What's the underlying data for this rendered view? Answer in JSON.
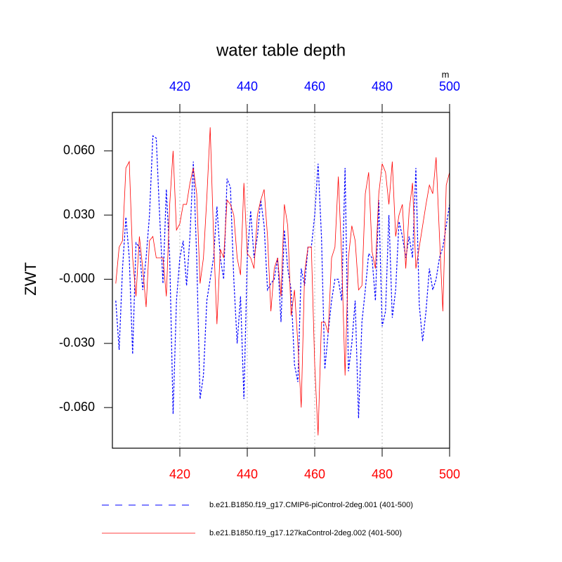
{
  "chart_data": {
    "type": "line",
    "title": "water table depth",
    "ylabel": "ZWT",
    "x2label": "m",
    "xlim": [
      400,
      500
    ],
    "xticks": [
      420,
      440,
      460,
      480,
      500
    ],
    "x2ticks": [
      420,
      440,
      460,
      480,
      500
    ],
    "xtick_color": "#ff0000",
    "x2tick_color": "#0000ff",
    "ylim": [
      -0.079,
      0.078
    ],
    "yticks": [
      {
        "value": 0.06,
        "label": "0.060"
      },
      {
        "value": 0.03,
        "label": "0.030"
      },
      {
        "value": 0,
        "label": "-0.000"
      },
      {
        "value": -0.03,
        "label": "-0.030"
      },
      {
        "value": -0.06,
        "label": "-0.060"
      }
    ],
    "grid": true,
    "legend": "bottom",
    "x": [
      401,
      402,
      403,
      404,
      405,
      406,
      407,
      408,
      409,
      410,
      411,
      412,
      413,
      414,
      415,
      416,
      417,
      418,
      419,
      420,
      421,
      422,
      423,
      424,
      425,
      426,
      427,
      428,
      429,
      430,
      431,
      432,
      433,
      434,
      435,
      436,
      437,
      438,
      439,
      440,
      441,
      442,
      443,
      444,
      445,
      446,
      447,
      448,
      449,
      450,
      451,
      452,
      453,
      454,
      455,
      456,
      457,
      458,
      459,
      460,
      461,
      462,
      463,
      464,
      465,
      466,
      467,
      468,
      469,
      470,
      471,
      472,
      473,
      474,
      475,
      476,
      477,
      478,
      479,
      480,
      481,
      482,
      483,
      484,
      485,
      486,
      487,
      488,
      489,
      490,
      491,
      492,
      493,
      494,
      495,
      496,
      497,
      498,
      499,
      500
    ],
    "series": [
      {
        "name": "b.e21.B1850.f19_g17.CMIP6-piControl-2deg.001 (401-500)",
        "color": "#0000ff",
        "dash": true,
        "values": [
          -0.01,
          -0.033,
          0.005,
          0.029,
          0.01,
          -0.035,
          0.017,
          0.015,
          -0.005,
          0.01,
          0.03,
          0.067,
          0.066,
          0.03,
          -0.002,
          0.042,
          0.01,
          -0.063,
          -0.01,
          0.01,
          0.018,
          -0.003,
          0.02,
          0.055,
          0.01,
          -0.056,
          -0.045,
          -0.01,
          0.0,
          0.01,
          0.034,
          0.01,
          0.0,
          0.047,
          0.043,
          0.0,
          -0.03,
          -0.008,
          -0.056,
          0.01,
          0.032,
          0.01,
          0.02,
          0.037,
          0.025,
          -0.005,
          -0.002,
          0.0,
          0.01,
          -0.02,
          0.023,
          0.005,
          -0.005,
          -0.04,
          -0.048,
          0.005,
          -0.003,
          0.015,
          0.015,
          0.03,
          0.054,
          0.02,
          -0.042,
          -0.025,
          -0.01,
          0.0,
          0.0,
          -0.01,
          0.052,
          -0.043,
          -0.03,
          -0.01,
          -0.065,
          -0.02,
          -0.005,
          0.012,
          0.01,
          -0.01,
          0.037,
          -0.022,
          -0.015,
          0.03,
          -0.018,
          -0.005,
          0.027,
          0.02,
          0.01,
          0.02,
          0.01,
          0.052,
          -0.012,
          -0.029,
          -0.015,
          0.005,
          -0.005,
          0.0,
          0.01,
          0.015,
          0.025,
          0.035
        ]
      },
      {
        "name": "b.e21.B1850.f19_g17.127kaControl-2deg.002 (401-500)",
        "color": "#ff0000",
        "dash": false,
        "values": [
          -0.002,
          0.015,
          0.018,
          0.052,
          0.055,
          0.01,
          -0.008,
          0.02,
          0.005,
          -0.013,
          0.018,
          0.02,
          0.01,
          0.01,
          0.01,
          -0.008,
          0.035,
          0.06,
          0.023,
          0.026,
          0.035,
          0.035,
          0.045,
          0.052,
          0.04,
          -0.002,
          0.01,
          0.038,
          0.071,
          0.02,
          -0.021,
          0.014,
          0.01,
          0.037,
          0.035,
          0.03,
          0.01,
          0.002,
          0.045,
          0.012,
          0.01,
          0.005,
          0.03,
          0.037,
          0.042,
          0.02,
          -0.015,
          0.005,
          0.01,
          -0.008,
          0.035,
          0.025,
          -0.017,
          -0.005,
          -0.03,
          -0.06,
          0.003,
          0.015,
          0.015,
          -0.04,
          -0.073,
          -0.02,
          -0.02,
          -0.025,
          0.01,
          0.015,
          0.048,
          0.01,
          -0.045,
          0.01,
          0.025,
          0.018,
          -0.005,
          -0.003,
          0.04,
          0.05,
          0.013,
          0.005,
          0.04,
          0.054,
          0.05,
          0.035,
          0.055,
          0.02,
          0.03,
          0.035,
          0.005,
          0.032,
          0.045,
          0.005,
          0.015,
          0.025,
          0.035,
          0.044,
          0.04,
          0.057,
          0.02,
          -0.015,
          0.044,
          0.05
        ]
      }
    ]
  }
}
